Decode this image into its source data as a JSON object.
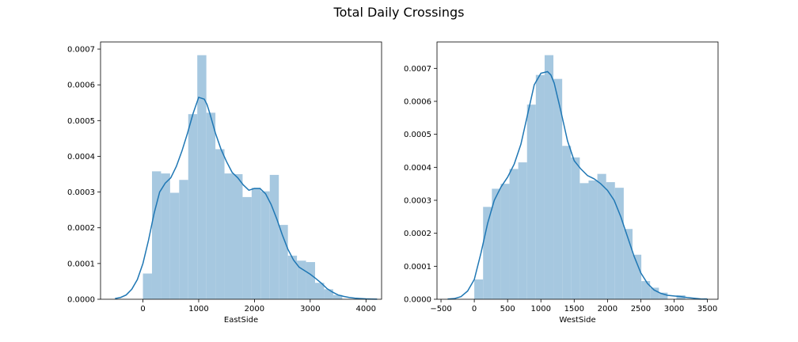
{
  "suptitle": "Total Daily Crossings",
  "chart_data": [
    {
      "type": "bar",
      "xlabel": "EastSide",
      "ylabel": "",
      "xlim": [
        -760,
        4280
      ],
      "ylim": [
        0,
        0.00072
      ],
      "xticks": [
        0,
        1000,
        2000,
        3000,
        4000
      ],
      "yticks": [
        0.0,
        0.0001,
        0.0002,
        0.0003,
        0.0004,
        0.0005,
        0.0006,
        0.0007
      ],
      "ytick_labels": [
        "0.0000",
        "0.0001",
        "0.0002",
        "0.0003",
        "0.0004",
        "0.0005",
        "0.0006",
        "0.0007"
      ],
      "bin_edges": [
        0,
        162.5,
        325,
        487.5,
        650,
        812.5,
        975,
        1137.5,
        1300,
        1462.5,
        1625,
        1787.5,
        1950,
        2112.5,
        2275,
        2437.5,
        2600,
        2762.5,
        2925,
        3087.5,
        3250,
        3412.5,
        3575
      ],
      "hist_values": [
        7.2e-05,
        0.000358,
        0.000352,
        0.000298,
        0.000334,
        0.000518,
        0.000683,
        0.000522,
        0.00042,
        0.000352,
        0.00035,
        0.000286,
        0.000312,
        0.000302,
        0.000348,
        0.000208,
        0.000122,
        0.000108,
        0.000104,
        4.6e-05,
        2.8e-05,
        1.2e-05
      ],
      "kde_x": [
        -500,
        -400,
        -300,
        -200,
        -100,
        0,
        100,
        200,
        300,
        400,
        500,
        600,
        700,
        800,
        900,
        1000,
        1100,
        1150,
        1200,
        1300,
        1400,
        1500,
        1600,
        1700,
        1800,
        1900,
        2000,
        2100,
        2200,
        2300,
        2400,
        2500,
        2600,
        2700,
        2800,
        2900,
        3000,
        3100,
        3200,
        3300,
        3400,
        3500,
        3600,
        3700,
        3800,
        3900,
        4000,
        4100,
        4200
      ],
      "kde_y": [
        2e-06,
        5e-06,
        1.2e-05,
        2.8e-05,
        5.5e-05,
        0.0001,
        0.000165,
        0.00024,
        0.0003,
        0.000325,
        0.00034,
        0.000372,
        0.000415,
        0.000465,
        0.00052,
        0.000565,
        0.00056,
        0.000545,
        0.00052,
        0.000465,
        0.00042,
        0.000385,
        0.000355,
        0.00034,
        0.00032,
        0.000305,
        0.00031,
        0.00031,
        0.000295,
        0.000265,
        0.000225,
        0.00018,
        0.00014,
        0.00011,
        9e-05,
        8e-05,
        7e-05,
        5.8e-05,
        4.5e-05,
        3e-05,
        2e-05,
        1.2e-05,
        8e-06,
        5e-06,
        3e-06,
        2e-06,
        1e-06,
        5e-07,
        2e-07
      ],
      "colors": {
        "bars": "#a6c8e0",
        "line": "#1f77b4"
      }
    },
    {
      "type": "bar",
      "xlabel": "WestSide",
      "ylabel": "",
      "xlim": [
        -560,
        3660
      ],
      "ylim": [
        0,
        0.00078
      ],
      "xticks": [
        -500,
        0,
        500,
        1000,
        1500,
        2000,
        2500,
        3000,
        3500
      ],
      "xtick_labels": [
        "−500",
        "0",
        "500",
        "1000",
        "1500",
        "2000",
        "2500",
        "3000",
        "3500"
      ],
      "yticks": [
        0.0,
        0.0001,
        0.0002,
        0.0003,
        0.0004,
        0.0005,
        0.0006,
        0.0007
      ],
      "ytick_labels": [
        "0.0000",
        "0.0001",
        "0.0002",
        "0.0003",
        "0.0004",
        "0.0005",
        "0.0006",
        "0.0007"
      ],
      "bin_edges": [
        0,
        132,
        264,
        396,
        528,
        660,
        792,
        924,
        1056,
        1188,
        1320,
        1452,
        1584,
        1716,
        1848,
        1980,
        2112,
        2244,
        2376,
        2508,
        2640,
        2772,
        2904,
        3036,
        3168
      ],
      "hist_values": [
        6e-05,
        0.00028,
        0.000335,
        0.00035,
        0.000395,
        0.000415,
        0.00059,
        0.00068,
        0.00074,
        0.000668,
        0.000465,
        0.00043,
        0.000352,
        0.00036,
        0.00038,
        0.000355,
        0.000338,
        0.000213,
        0.000135,
        5.5e-05,
        3.5e-05,
        2e-05,
        0.0,
        1.2e-05
      ],
      "kde_x": [
        -400,
        -300,
        -200,
        -100,
        0,
        100,
        200,
        300,
        400,
        500,
        600,
        700,
        800,
        900,
        1000,
        1100,
        1150,
        1200,
        1300,
        1400,
        1500,
        1600,
        1700,
        1800,
        1900,
        2000,
        2100,
        2200,
        2300,
        2400,
        2500,
        2600,
        2700,
        2800,
        2900,
        3000,
        3100,
        3200,
        3300,
        3400,
        3500
      ],
      "kde_y": [
        5e-07,
        2e-06,
        8e-06,
        2.5e-05,
        6e-05,
        0.00014,
        0.00023,
        0.0003,
        0.00034,
        0.00037,
        0.00041,
        0.00047,
        0.00056,
        0.00065,
        0.000685,
        0.00069,
        0.00068,
        0.000655,
        0.00057,
        0.00048,
        0.00042,
        0.000395,
        0.000375,
        0.000365,
        0.00035,
        0.00033,
        0.0003,
        0.00025,
        0.00019,
        0.00013,
        8e-05,
        4.8e-05,
        2.8e-05,
        1.8e-05,
        1.2e-05,
        1e-05,
        8e-06,
        5e-06,
        3e-06,
        1e-06,
        5e-07
      ],
      "colors": {
        "bars": "#a6c8e0",
        "line": "#1f77b4"
      }
    }
  ]
}
